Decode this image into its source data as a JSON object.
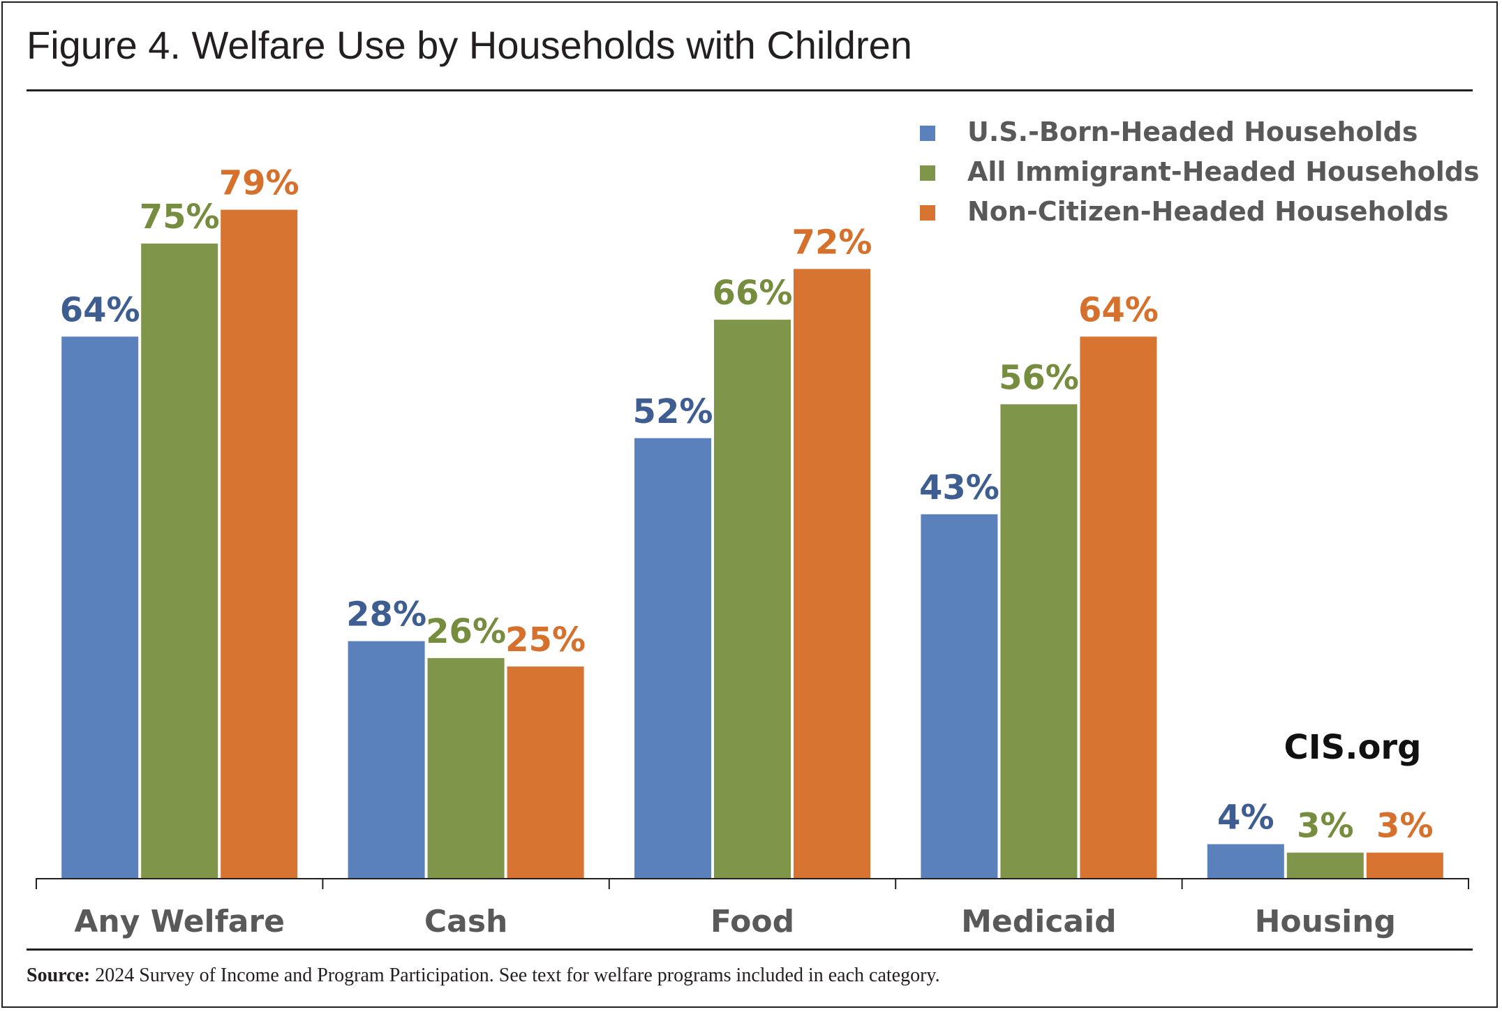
{
  "title": "Figure 4. Welfare Use by Households with Children",
  "watermark": "CIS.org",
  "source": {
    "label": "Source:",
    "text": "2024 Survey of Income and Program Participation. See text for welfare programs included in each category."
  },
  "chart_data": {
    "type": "bar",
    "categories": [
      "Any Welfare",
      "Cash",
      "Food",
      "Medicaid",
      "Housing"
    ],
    "series": [
      {
        "name": "U.S.-Born-Headed Households",
        "color": "#5b81bc",
        "label_color": "#3e5e92",
        "values": [
          64,
          28,
          52,
          43,
          4
        ]
      },
      {
        "name": "All Immigrant-Headed Households",
        "color": "#7f9549",
        "label_color": "#768c3e",
        "values": [
          75,
          26,
          66,
          56,
          3
        ]
      },
      {
        "name": "Non-Citizen-Headed Households",
        "color": "#d77432",
        "label_color": "#d5702d",
        "values": [
          79,
          25,
          72,
          64,
          3
        ]
      }
    ],
    "value_suffix": "%",
    "ylim": [
      0,
      100
    ],
    "grid": false,
    "legend_position": "top-right"
  }
}
